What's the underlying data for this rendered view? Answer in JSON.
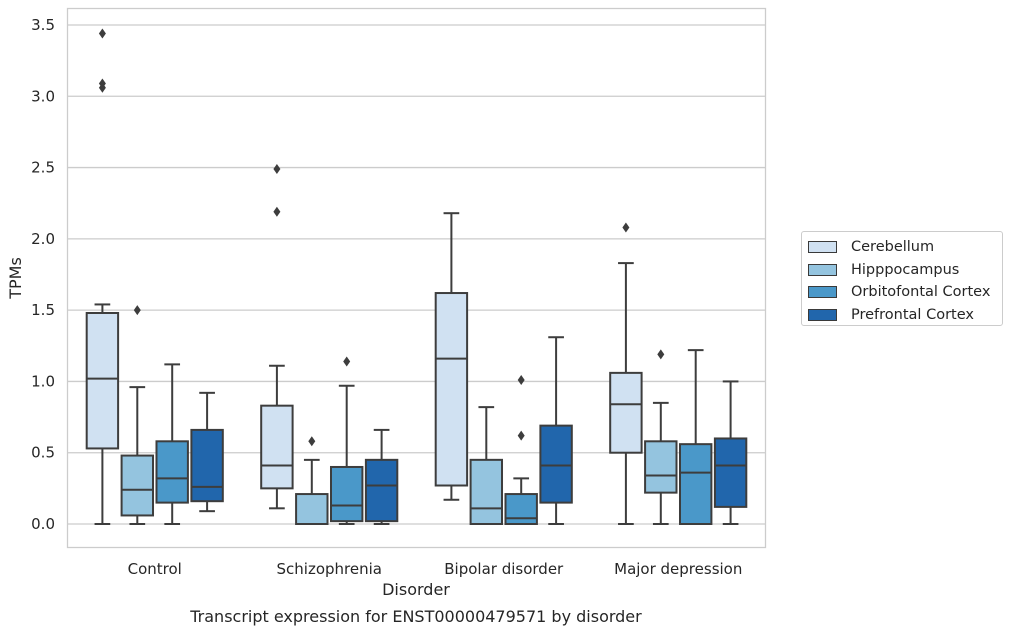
{
  "chart_data": {
    "type": "box",
    "title": "Transcript expression for ENST00000479571 by disorder",
    "xlabel": "Disorder",
    "ylabel": "TPMs",
    "ylim": [
      -0.17,
      3.62
    ],
    "yticks": [
      "0.0",
      "0.5",
      "1.0",
      "1.5",
      "2.0",
      "2.5",
      "3.0",
      "3.5"
    ],
    "categories": [
      "Control",
      "Schizophrenia",
      "Bipolar disorder",
      "Major depression"
    ],
    "grid": true,
    "legend_position": "right",
    "series": [
      {
        "name": "Cerebellum",
        "color": "#d0e1f2",
        "boxes": [
          {
            "whisker_low": 0.0,
            "q1": 0.53,
            "median": 1.02,
            "q3": 1.48,
            "whisker_high": 1.54,
            "outliers": [
              3.06,
              3.09,
              3.44
            ]
          },
          {
            "whisker_low": 0.11,
            "q1": 0.25,
            "median": 0.41,
            "q3": 0.83,
            "whisker_high": 1.11,
            "outliers": [
              2.19,
              2.49
            ]
          },
          {
            "whisker_low": 0.17,
            "q1": 0.27,
            "median": 1.16,
            "q3": 1.62,
            "whisker_high": 2.18,
            "outliers": []
          },
          {
            "whisker_low": 0.0,
            "q1": 0.5,
            "median": 0.84,
            "q3": 1.06,
            "whisker_high": 1.83,
            "outliers": [
              2.08
            ]
          }
        ]
      },
      {
        "name": "Hipppocampus",
        "color": "#94c4df",
        "boxes": [
          {
            "whisker_low": 0.0,
            "q1": 0.06,
            "median": 0.24,
            "q3": 0.48,
            "whisker_high": 0.96,
            "outliers": [
              1.5
            ]
          },
          {
            "whisker_low": 0.0,
            "q1": 0.0,
            "median": 0.0,
            "q3": 0.21,
            "whisker_high": 0.45,
            "outliers": [
              0.58
            ]
          },
          {
            "whisker_low": 0.0,
            "q1": 0.0,
            "median": 0.11,
            "q3": 0.45,
            "whisker_high": 0.82,
            "outliers": []
          },
          {
            "whisker_low": 0.0,
            "q1": 0.22,
            "median": 0.34,
            "q3": 0.58,
            "whisker_high": 0.85,
            "outliers": [
              1.19
            ]
          }
        ]
      },
      {
        "name": "Orbitofontal Cortex",
        "color": "#4a98c9",
        "boxes": [
          {
            "whisker_low": 0.0,
            "q1": 0.15,
            "median": 0.32,
            "q3": 0.58,
            "whisker_high": 1.12,
            "outliers": []
          },
          {
            "whisker_low": 0.0,
            "q1": 0.02,
            "median": 0.13,
            "q3": 0.4,
            "whisker_high": 0.97,
            "outliers": [
              1.14
            ]
          },
          {
            "whisker_low": 0.0,
            "q1": 0.0,
            "median": 0.04,
            "q3": 0.21,
            "whisker_high": 0.32,
            "outliers": [
              0.62,
              1.01
            ]
          },
          {
            "whisker_low": 0.0,
            "q1": 0.0,
            "median": 0.36,
            "q3": 0.56,
            "whisker_high": 1.22,
            "outliers": []
          }
        ]
      },
      {
        "name": "Prefrontal Cortex",
        "color": "#2166ac",
        "boxes": [
          {
            "whisker_low": 0.09,
            "q1": 0.16,
            "median": 0.26,
            "q3": 0.66,
            "whisker_high": 0.92,
            "outliers": []
          },
          {
            "whisker_low": 0.0,
            "q1": 0.02,
            "median": 0.27,
            "q3": 0.45,
            "whisker_high": 0.66,
            "outliers": []
          },
          {
            "whisker_low": 0.0,
            "q1": 0.15,
            "median": 0.41,
            "q3": 0.69,
            "whisker_high": 1.31,
            "outliers": []
          },
          {
            "whisker_low": 0.0,
            "q1": 0.12,
            "median": 0.41,
            "q3": 0.6,
            "whisker_high": 1.0,
            "outliers": []
          }
        ]
      }
    ]
  }
}
